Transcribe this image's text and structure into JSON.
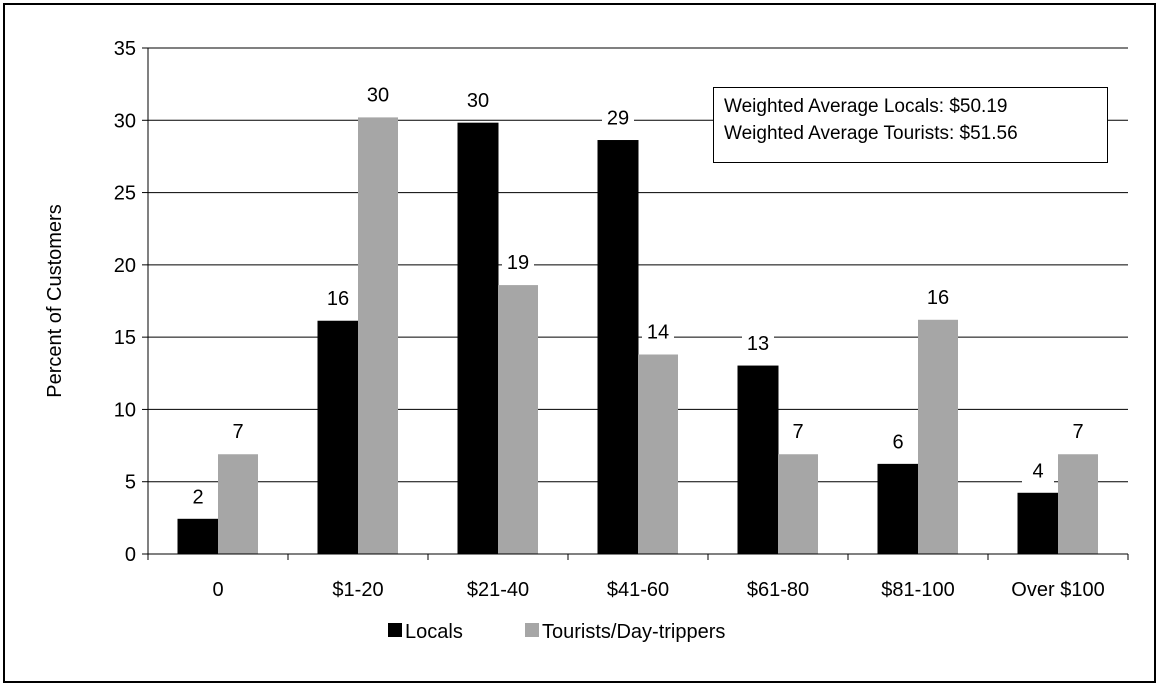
{
  "chart_data": {
    "type": "bar",
    "categories": [
      "0",
      "$1-20",
      "$21-40",
      "$41-60",
      "$61-80",
      "$81-100",
      "Over $100"
    ],
    "series": [
      {
        "name": "Locals",
        "color": "#000000",
        "values": [
          2.4,
          16.1,
          29.8,
          28.6,
          13.0,
          6.2,
          4.2
        ],
        "labels": [
          "2",
          "16",
          "30",
          "29",
          "13",
          "6",
          "4"
        ]
      },
      {
        "name": "Tourists/Day-trippers",
        "color": "#a6a6a6",
        "values": [
          6.9,
          30.2,
          18.6,
          13.8,
          6.9,
          16.2,
          6.9
        ],
        "labels": [
          "7",
          "30",
          "19",
          "14",
          "7",
          "16",
          "7"
        ]
      }
    ],
    "ylabel": "Percent of Customers",
    "xlabel": "",
    "ylim": [
      0,
      35
    ],
    "yticks": [
      0,
      5,
      10,
      15,
      20,
      25,
      30,
      35
    ],
    "grid": true,
    "legend_position": "bottom",
    "annotation": {
      "lines": [
        "Weighted Average Locals: $50.19",
        "Weighted Average Tourists: $51.56"
      ]
    }
  }
}
